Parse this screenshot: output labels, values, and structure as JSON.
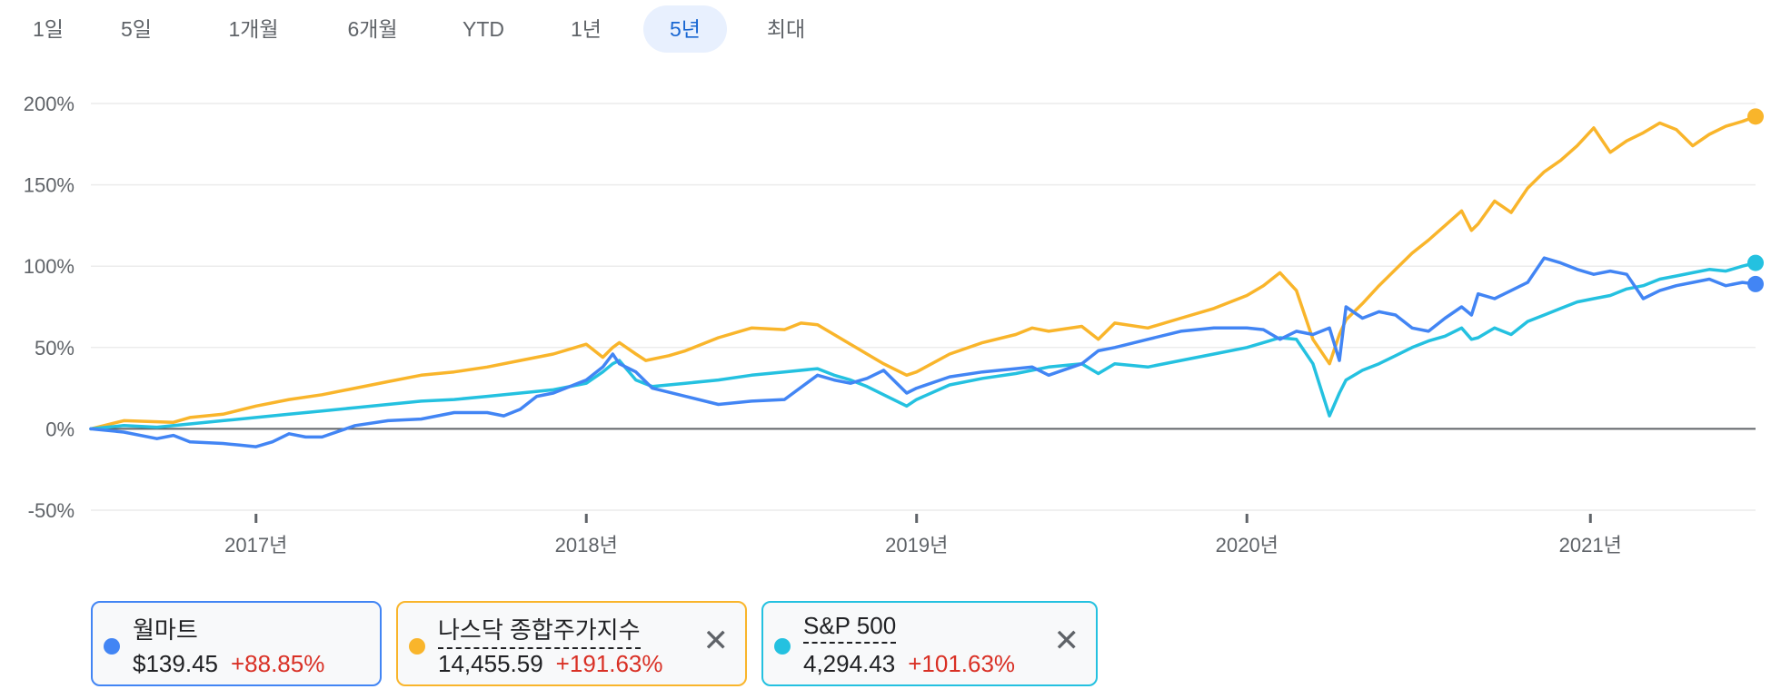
{
  "range_tabs": [
    {
      "label": "1일",
      "active": false
    },
    {
      "label": "5일",
      "active": false
    },
    {
      "label": "1개월",
      "active": false
    },
    {
      "label": "6개월",
      "active": false
    },
    {
      "label": "YTD",
      "active": false
    },
    {
      "label": "1년",
      "active": false
    },
    {
      "label": "5년",
      "active": true
    },
    {
      "label": "최대",
      "active": false
    }
  ],
  "chart_data": {
    "type": "line",
    "title": "",
    "xlabel": "",
    "ylabel": "",
    "x_range": [
      2016.5,
      2021.54
    ],
    "ylim": [
      -50,
      200
    ],
    "y_ticks": [
      -50,
      0,
      50,
      100,
      150,
      200
    ],
    "y_tick_labels": [
      "-50%",
      "0%",
      "50%",
      "100%",
      "150%",
      "200%"
    ],
    "x_ticks": [
      2017,
      2018,
      2019,
      2020,
      2021.04
    ],
    "x_tick_labels": [
      "2017년",
      "2018년",
      "2019년",
      "2020년",
      "2021년"
    ],
    "baseline": 0,
    "grid": true,
    "series": [
      {
        "name": "나스닥 종합주가지수",
        "color": "#f9b52b",
        "x": [
          2016.5,
          2016.6,
          2016.75,
          2016.8,
          2016.9,
          2017.0,
          2017.1,
          2017.2,
          2017.3,
          2017.4,
          2017.5,
          2017.6,
          2017.7,
          2017.8,
          2017.9,
          2018.0,
          2018.05,
          2018.08,
          2018.1,
          2018.15,
          2018.18,
          2018.25,
          2018.3,
          2018.4,
          2018.5,
          2018.6,
          2018.65,
          2018.7,
          2018.75,
          2018.8,
          2018.85,
          2018.9,
          2018.97,
          2019.0,
          2019.1,
          2019.2,
          2019.3,
          2019.35,
          2019.4,
          2019.5,
          2019.55,
          2019.6,
          2019.7,
          2019.8,
          2019.9,
          2020.0,
          2020.05,
          2020.1,
          2020.15,
          2020.2,
          2020.25,
          2020.28,
          2020.3,
          2020.35,
          2020.4,
          2020.45,
          2020.5,
          2020.55,
          2020.6,
          2020.65,
          2020.68,
          2020.7,
          2020.75,
          2020.8,
          2020.85,
          2020.9,
          2020.95,
          2021.0,
          2021.05,
          2021.1,
          2021.15,
          2021.2,
          2021.25,
          2021.3,
          2021.35,
          2021.4,
          2021.45,
          2021.5,
          2021.54
        ],
        "y": [
          0,
          5,
          4,
          7,
          9,
          14,
          18,
          21,
          25,
          29,
          33,
          35,
          38,
          42,
          46,
          52,
          44,
          50,
          53,
          46,
          42,
          45,
          48,
          56,
          62,
          61,
          65,
          64,
          58,
          52,
          46,
          40,
          33,
          35,
          46,
          53,
          58,
          62,
          60,
          63,
          55,
          65,
          62,
          68,
          74,
          82,
          88,
          96,
          85,
          55,
          40,
          58,
          67,
          77,
          88,
          98,
          108,
          116,
          125,
          134,
          122,
          126,
          140,
          133,
          148,
          158,
          165,
          174,
          185,
          170,
          177,
          182,
          188,
          184,
          174,
          181,
          186,
          189,
          192
        ]
      },
      {
        "name": "S&P 500",
        "color": "#24c1e0",
        "x": [
          2016.5,
          2016.6,
          2016.7,
          2016.8,
          2016.9,
          2017.0,
          2017.1,
          2017.2,
          2017.3,
          2017.4,
          2017.5,
          2017.6,
          2017.7,
          2017.8,
          2017.9,
          2018.0,
          2018.05,
          2018.08,
          2018.1,
          2018.15,
          2018.2,
          2018.3,
          2018.4,
          2018.5,
          2018.6,
          2018.7,
          2018.75,
          2018.8,
          2018.85,
          2018.9,
          2018.97,
          2019.0,
          2019.1,
          2019.2,
          2019.3,
          2019.35,
          2019.4,
          2019.5,
          2019.55,
          2019.6,
          2019.7,
          2019.8,
          2019.9,
          2020.0,
          2020.05,
          2020.1,
          2020.15,
          2020.2,
          2020.25,
          2020.28,
          2020.3,
          2020.35,
          2020.4,
          2020.45,
          2020.5,
          2020.55,
          2020.6,
          2020.65,
          2020.68,
          2020.7,
          2020.75,
          2020.8,
          2020.85,
          2020.9,
          2020.95,
          2021.0,
          2021.05,
          2021.1,
          2021.15,
          2021.2,
          2021.25,
          2021.3,
          2021.35,
          2021.4,
          2021.45,
          2021.5,
          2021.54
        ],
        "y": [
          0,
          2,
          1,
          3,
          5,
          7,
          9,
          11,
          13,
          15,
          17,
          18,
          20,
          22,
          24,
          28,
          35,
          40,
          42,
          30,
          26,
          28,
          30,
          33,
          35,
          37,
          33,
          30,
          26,
          21,
          14,
          18,
          27,
          31,
          34,
          36,
          38,
          40,
          34,
          40,
          38,
          42,
          46,
          50,
          53,
          56,
          55,
          40,
          8,
          22,
          30,
          36,
          40,
          45,
          50,
          54,
          57,
          62,
          55,
          56,
          62,
          58,
          66,
          70,
          74,
          78,
          80,
          82,
          86,
          88,
          92,
          94,
          96,
          98,
          97,
          100,
          102
        ]
      },
      {
        "name": "월마트",
        "color": "#4285f4",
        "x": [
          2016.5,
          2016.6,
          2016.7,
          2016.75,
          2016.8,
          2016.9,
          2016.95,
          2017.0,
          2017.05,
          2017.1,
          2017.15,
          2017.2,
          2017.3,
          2017.4,
          2017.5,
          2017.6,
          2017.7,
          2017.75,
          2017.8,
          2017.85,
          2017.9,
          2018.0,
          2018.05,
          2018.08,
          2018.1,
          2018.15,
          2018.2,
          2018.3,
          2018.4,
          2018.5,
          2018.6,
          2018.7,
          2018.75,
          2018.8,
          2018.85,
          2018.9,
          2018.97,
          2019.0,
          2019.1,
          2019.2,
          2019.3,
          2019.35,
          2019.4,
          2019.5,
          2019.55,
          2019.6,
          2019.7,
          2019.8,
          2019.9,
          2020.0,
          2020.05,
          2020.1,
          2020.15,
          2020.2,
          2020.25,
          2020.28,
          2020.3,
          2020.35,
          2020.4,
          2020.45,
          2020.5,
          2020.55,
          2020.6,
          2020.65,
          2020.68,
          2020.7,
          2020.75,
          2020.8,
          2020.85,
          2020.9,
          2020.95,
          2021.0,
          2021.05,
          2021.1,
          2021.15,
          2021.2,
          2021.25,
          2021.3,
          2021.35,
          2021.4,
          2021.45,
          2021.5,
          2021.54
        ],
        "y": [
          0,
          -2,
          -6,
          -4,
          -8,
          -9,
          -10,
          -11,
          -8,
          -3,
          -5,
          -5,
          2,
          5,
          6,
          10,
          10,
          8,
          12,
          20,
          22,
          30,
          38,
          46,
          40,
          35,
          25,
          20,
          15,
          17,
          18,
          33,
          30,
          28,
          31,
          36,
          22,
          25,
          32,
          35,
          37,
          38,
          33,
          40,
          48,
          50,
          55,
          60,
          62,
          62,
          61,
          55,
          60,
          58,
          62,
          42,
          75,
          68,
          72,
          70,
          62,
          60,
          68,
          75,
          70,
          83,
          80,
          85,
          90,
          105,
          102,
          98,
          95,
          97,
          95,
          80,
          85,
          88,
          90,
          92,
          88,
          90,
          89
        ]
      }
    ]
  },
  "legend": [
    {
      "name": "월마트",
      "price": "$139.45",
      "change": "+88.85%",
      "color": "#4285f4",
      "removable": false
    },
    {
      "name": "나스닥 종합주가지수",
      "price": "14,455.59",
      "change": "+191.63%",
      "color": "#f9b52b",
      "removable": true
    },
    {
      "name": "S&P 500",
      "price": "4,294.43",
      "change": "+101.63%",
      "color": "#24c1e0",
      "removable": true
    }
  ],
  "icons": {
    "close": "close-icon",
    "dot": "series-dot-icon"
  }
}
